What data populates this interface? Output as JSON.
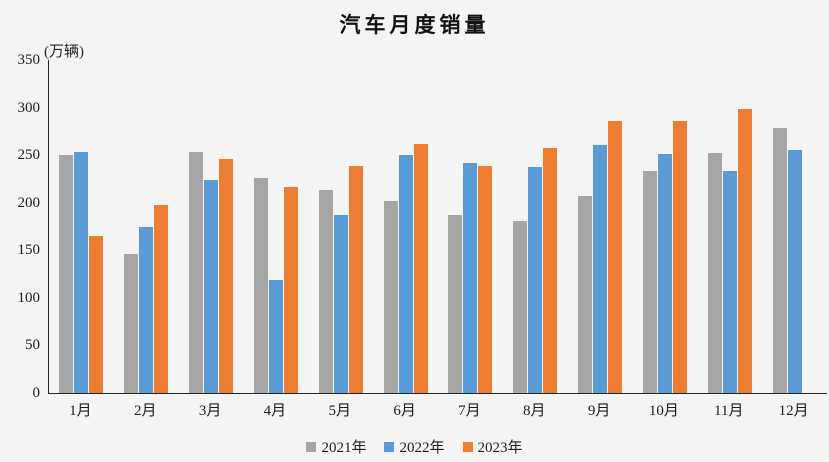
{
  "chart_data": {
    "type": "bar",
    "title": "汽车月度销量",
    "unit_label": "(万辆)",
    "categories": [
      "1月",
      "2月",
      "3月",
      "4月",
      "5月",
      "6月",
      "7月",
      "8月",
      "9月",
      "10月",
      "11月",
      "12月"
    ],
    "series": [
      {
        "name": "2021年",
        "color": "#A5A5A5",
        "values": [
          250,
          146,
          253,
          226,
          213,
          202,
          187,
          181,
          207,
          233,
          252,
          279
        ]
      },
      {
        "name": "2022年",
        "color": "#5B9BD5",
        "values": [
          253,
          175,
          224,
          119,
          187,
          250,
          242,
          238,
          261,
          251,
          233,
          255
        ]
      },
      {
        "name": "2023年",
        "color": "#ED7D31",
        "values": [
          165,
          198,
          246,
          217,
          239,
          262,
          239,
          258,
          286,
          286,
          298,
          null
        ]
      }
    ],
    "ylim": [
      0,
      350
    ],
    "yticks": [
      0,
      50,
      100,
      150,
      200,
      250,
      300,
      350
    ],
    "grid": false,
    "legend_position": "bottom",
    "background_color": "#F4F4F4",
    "axis_color": "#262626"
  }
}
